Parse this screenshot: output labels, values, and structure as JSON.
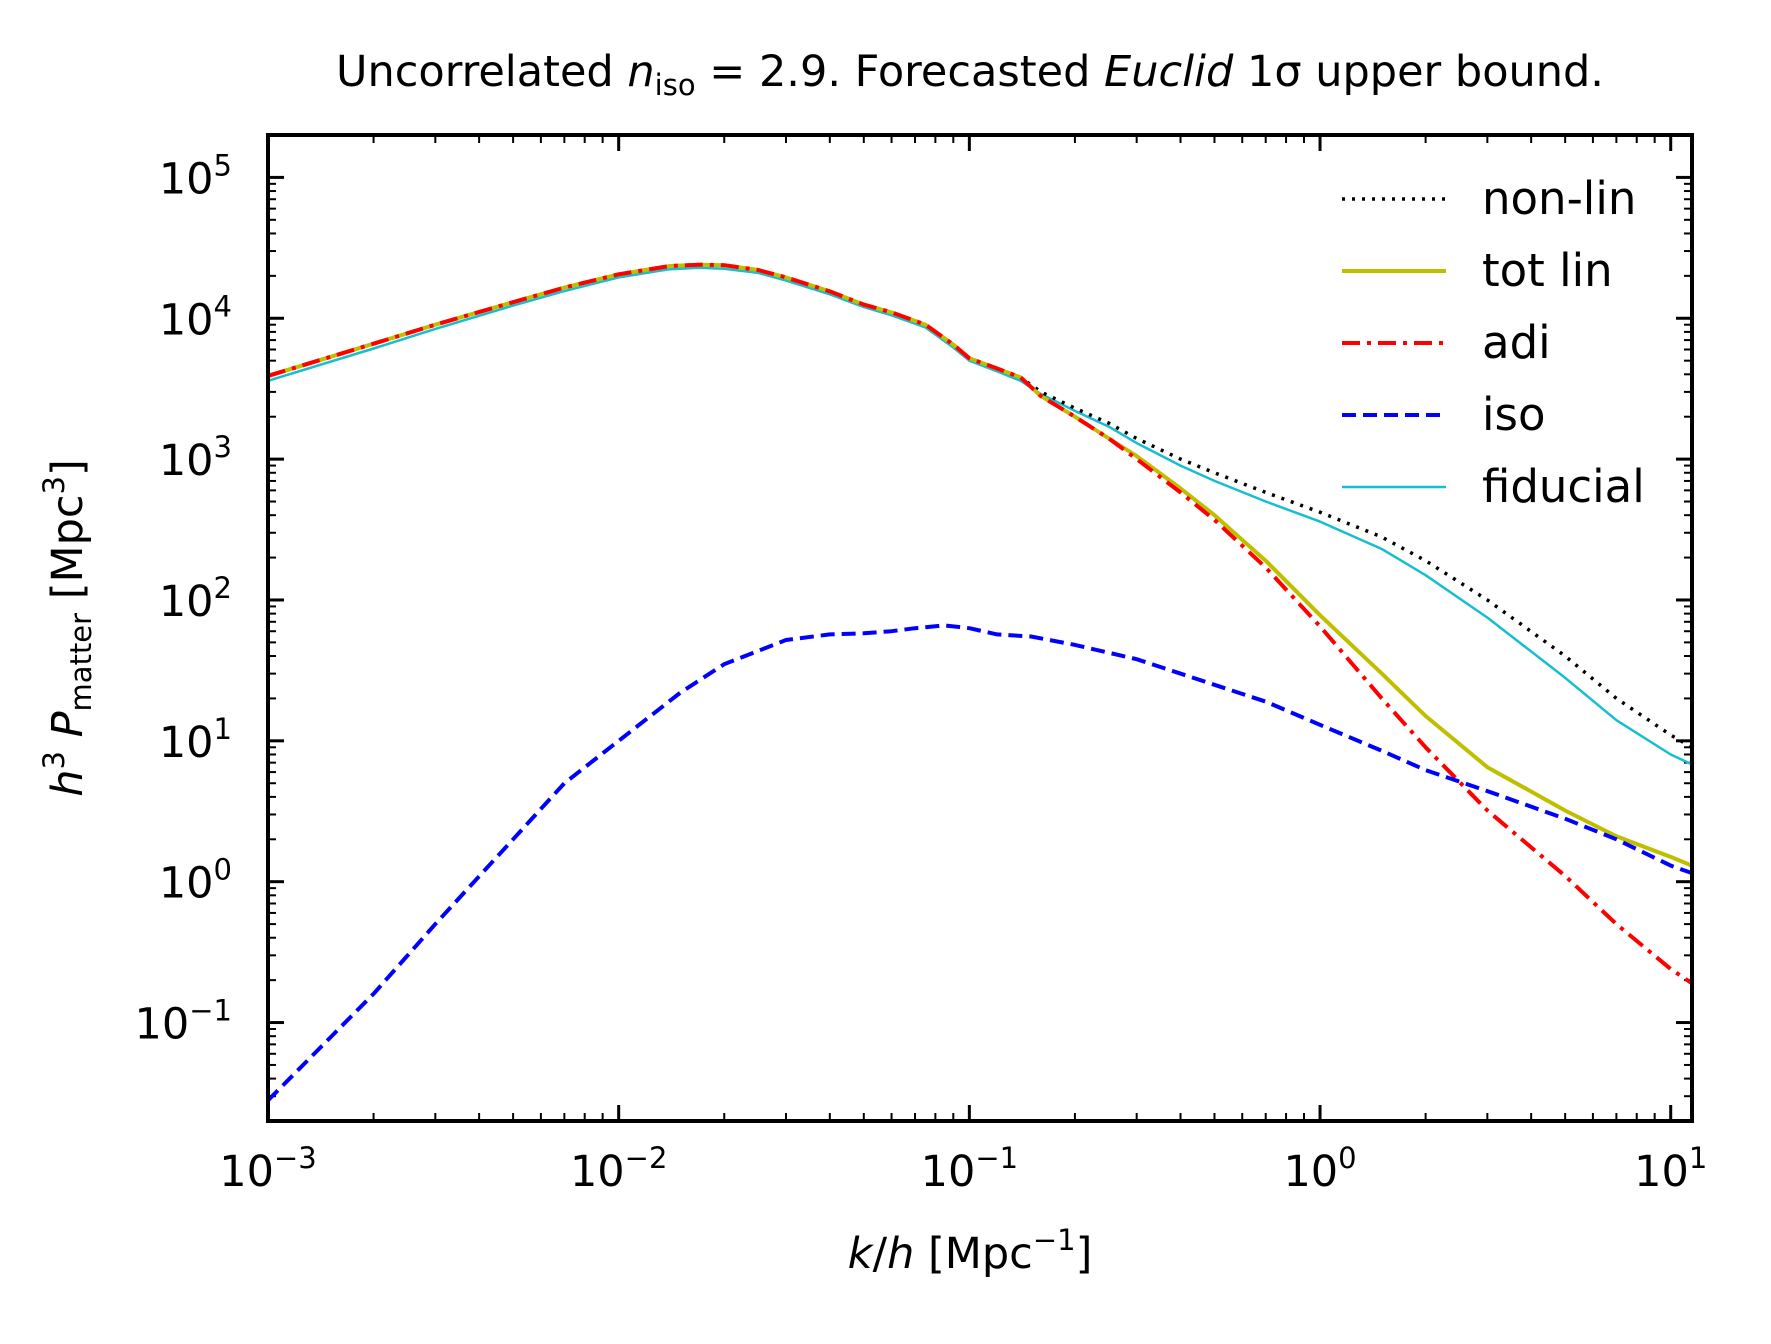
{
  "chart_data": {
    "type": "line",
    "title": {
      "prefix": "Uncorrelated ",
      "n_symbol": "n",
      "n_subscript": "iso",
      "equals_value": " = 2.9. Forecasted ",
      "survey": "Euclid",
      "sigma_text": " 1σ upper bound."
    },
    "xlabel": {
      "k": "k",
      "slash": "/",
      "h": "h",
      "unit": " [Mpc",
      "exp": "−1",
      "close": "]"
    },
    "ylabel": {
      "h": "h",
      "h_exp": "3",
      "P": "P",
      "P_sub": "matter",
      "unit": " [Mpc",
      "exp": "3",
      "close": "]"
    },
    "x_scale": "log",
    "y_scale": "log",
    "xlim": [
      0.001,
      11.5
    ],
    "ylim": [
      0.02,
      200000
    ],
    "x_ticks": [
      {
        "base": "10",
        "exp": "−3",
        "value": 0.001
      },
      {
        "base": "10",
        "exp": "−2",
        "value": 0.01
      },
      {
        "base": "10",
        "exp": "−1",
        "value": 0.1
      },
      {
        "base": "10",
        "exp": "0",
        "value": 1
      },
      {
        "base": "10",
        "exp": "1",
        "value": 10
      }
    ],
    "y_ticks": [
      {
        "base": "10",
        "exp": "−1",
        "value": 0.1
      },
      {
        "base": "10",
        "exp": "0",
        "value": 1
      },
      {
        "base": "10",
        "exp": "1",
        "value": 10
      },
      {
        "base": "10",
        "exp": "2",
        "value": 100
      },
      {
        "base": "10",
        "exp": "3",
        "value": 1000
      },
      {
        "base": "10",
        "exp": "4",
        "value": 10000
      },
      {
        "base": "10",
        "exp": "5",
        "value": 100000
      }
    ],
    "grid": false,
    "legend_position": "top-right",
    "series": [
      {
        "name": "non-lin",
        "color": "#000000",
        "dash": "dotted",
        "points": [
          [
            0.001,
            3900
          ],
          [
            0.002,
            6600
          ],
          [
            0.003,
            9000
          ],
          [
            0.005,
            13000
          ],
          [
            0.007,
            16500
          ],
          [
            0.01,
            20500
          ],
          [
            0.014,
            23500
          ],
          [
            0.017,
            24000
          ],
          [
            0.02,
            23800
          ],
          [
            0.025,
            22000
          ],
          [
            0.03,
            19500
          ],
          [
            0.04,
            15500
          ],
          [
            0.05,
            12500
          ],
          [
            0.06,
            11000
          ],
          [
            0.075,
            9000
          ],
          [
            0.09,
            6500
          ],
          [
            0.1,
            5200
          ],
          [
            0.12,
            4400
          ],
          [
            0.14,
            3800
          ],
          [
            0.16,
            3000
          ],
          [
            0.2,
            2300
          ],
          [
            0.25,
            1800
          ],
          [
            0.3,
            1400
          ],
          [
            0.4,
            1000
          ],
          [
            0.5,
            800
          ],
          [
            0.7,
            580
          ],
          [
            1.0,
            420
          ],
          [
            1.5,
            280
          ],
          [
            2.0,
            190
          ],
          [
            3.0,
            100
          ],
          [
            5.0,
            40
          ],
          [
            7.0,
            20
          ],
          [
            10.0,
            11
          ],
          [
            11.5,
            9
          ]
        ]
      },
      {
        "name": "tot lin",
        "color": "#bfbf00",
        "dash": "solid",
        "points": [
          [
            0.001,
            3900
          ],
          [
            0.002,
            6600
          ],
          [
            0.003,
            9000
          ],
          [
            0.005,
            13000
          ],
          [
            0.007,
            16500
          ],
          [
            0.01,
            20500
          ],
          [
            0.014,
            23500
          ],
          [
            0.017,
            24000
          ],
          [
            0.02,
            23800
          ],
          [
            0.025,
            22000
          ],
          [
            0.03,
            19500
          ],
          [
            0.04,
            15500
          ],
          [
            0.05,
            12500
          ],
          [
            0.06,
            11000
          ],
          [
            0.075,
            9000
          ],
          [
            0.09,
            6500
          ],
          [
            0.1,
            5200
          ],
          [
            0.12,
            4400
          ],
          [
            0.14,
            3800
          ],
          [
            0.16,
            2800
          ],
          [
            0.2,
            2000
          ],
          [
            0.25,
            1400
          ],
          [
            0.3,
            1050
          ],
          [
            0.4,
            620
          ],
          [
            0.5,
            400
          ],
          [
            0.7,
            190
          ],
          [
            1.0,
            78
          ],
          [
            1.5,
            30
          ],
          [
            2.0,
            15
          ],
          [
            3.0,
            6.5
          ],
          [
            5.0,
            3.2
          ],
          [
            7.0,
            2.1
          ],
          [
            10.0,
            1.5
          ],
          [
            11.5,
            1.3
          ]
        ]
      },
      {
        "name": "adi",
        "color": "#ff0000",
        "dash": "dashdot",
        "points": [
          [
            0.001,
            3900
          ],
          [
            0.002,
            6600
          ],
          [
            0.003,
            9000
          ],
          [
            0.005,
            13000
          ],
          [
            0.007,
            16500
          ],
          [
            0.01,
            20500
          ],
          [
            0.014,
            23500
          ],
          [
            0.017,
            24000
          ],
          [
            0.02,
            23800
          ],
          [
            0.025,
            22000
          ],
          [
            0.03,
            19500
          ],
          [
            0.04,
            15500
          ],
          [
            0.05,
            12500
          ],
          [
            0.06,
            11000
          ],
          [
            0.075,
            9000
          ],
          [
            0.09,
            6500
          ],
          [
            0.1,
            5200
          ],
          [
            0.12,
            4400
          ],
          [
            0.14,
            3800
          ],
          [
            0.16,
            2800
          ],
          [
            0.2,
            2000
          ],
          [
            0.25,
            1400
          ],
          [
            0.3,
            1000
          ],
          [
            0.4,
            580
          ],
          [
            0.5,
            370
          ],
          [
            0.7,
            170
          ],
          [
            1.0,
            65
          ],
          [
            1.5,
            20
          ],
          [
            2.0,
            9
          ],
          [
            3.0,
            3.2
          ],
          [
            5.0,
            1.1
          ],
          [
            7.0,
            0.5
          ],
          [
            10.0,
            0.24
          ],
          [
            11.5,
            0.19
          ]
        ]
      },
      {
        "name": "iso",
        "color": "#0000ff",
        "dash": "dashed",
        "points": [
          [
            0.001,
            0.028
          ],
          [
            0.002,
            0.16
          ],
          [
            0.003,
            0.5
          ],
          [
            0.005,
            2.0
          ],
          [
            0.007,
            5.0
          ],
          [
            0.01,
            10
          ],
          [
            0.015,
            22
          ],
          [
            0.02,
            35
          ],
          [
            0.03,
            52
          ],
          [
            0.04,
            57
          ],
          [
            0.05,
            58
          ],
          [
            0.06,
            60
          ],
          [
            0.07,
            63
          ],
          [
            0.085,
            66
          ],
          [
            0.1,
            63
          ],
          [
            0.12,
            57
          ],
          [
            0.15,
            55
          ],
          [
            0.2,
            48
          ],
          [
            0.3,
            38
          ],
          [
            0.5,
            25
          ],
          [
            0.7,
            19
          ],
          [
            1.0,
            13
          ],
          [
            1.5,
            8.5
          ],
          [
            2.0,
            6.2
          ],
          [
            3.0,
            4.4
          ],
          [
            5.0,
            2.8
          ],
          [
            7.0,
            2.0
          ],
          [
            10.0,
            1.3
          ],
          [
            11.5,
            1.15
          ]
        ]
      },
      {
        "name": "fiducial",
        "color": "#17becf",
        "dash": "solid",
        "points": [
          [
            0.001,
            3600
          ],
          [
            0.002,
            6100
          ],
          [
            0.003,
            8400
          ],
          [
            0.005,
            12300
          ],
          [
            0.007,
            15600
          ],
          [
            0.01,
            19500
          ],
          [
            0.014,
            22300
          ],
          [
            0.017,
            22800
          ],
          [
            0.02,
            22500
          ],
          [
            0.025,
            21000
          ],
          [
            0.03,
            18500
          ],
          [
            0.04,
            14800
          ],
          [
            0.05,
            12000
          ],
          [
            0.06,
            10500
          ],
          [
            0.075,
            8600
          ],
          [
            0.09,
            6200
          ],
          [
            0.1,
            5000
          ],
          [
            0.12,
            4200
          ],
          [
            0.14,
            3600
          ],
          [
            0.16,
            2900
          ],
          [
            0.2,
            2200
          ],
          [
            0.25,
            1700
          ],
          [
            0.3,
            1300
          ],
          [
            0.4,
            900
          ],
          [
            0.5,
            700
          ],
          [
            0.7,
            500
          ],
          [
            1.0,
            360
          ],
          [
            1.5,
            230
          ],
          [
            2.0,
            150
          ],
          [
            3.0,
            75
          ],
          [
            5.0,
            28
          ],
          [
            7.0,
            14
          ],
          [
            10.0,
            8
          ],
          [
            11.5,
            6.8
          ]
        ]
      }
    ]
  }
}
